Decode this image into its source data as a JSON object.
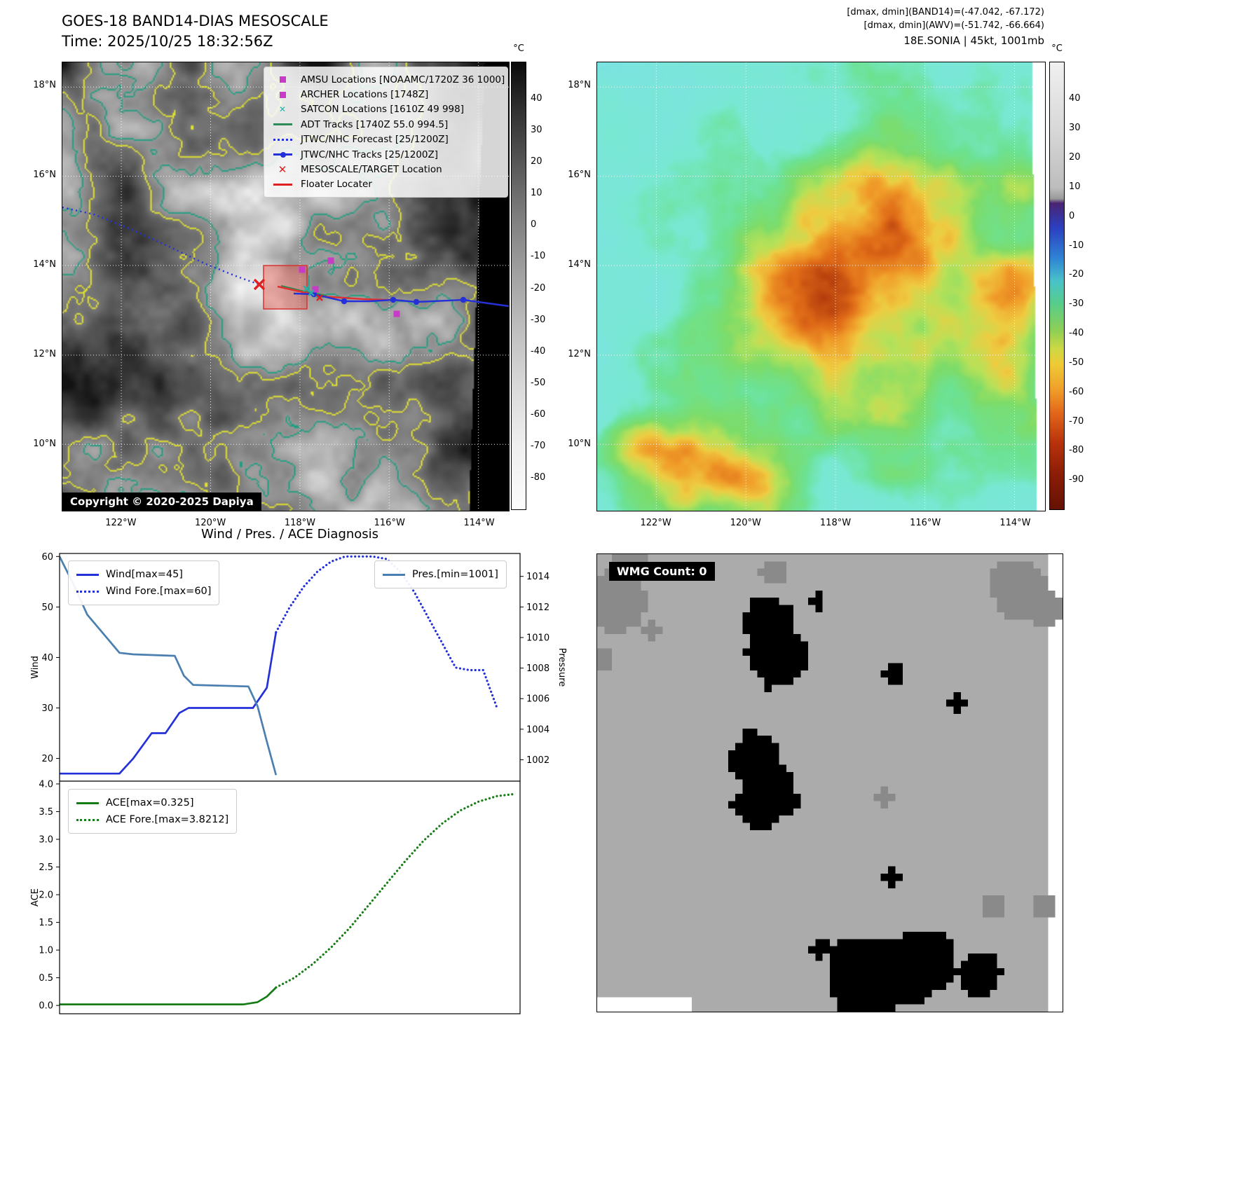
{
  "panel_tl": {
    "title": "GOES-18 BAND14-DIAS MESOSCALE",
    "subtitle": "Time: 2025/10/25 18:32:56Z",
    "copyright": "Copyright © 2020-2025 Dapiya",
    "colorbar": {
      "unit": "°C",
      "vmax": 52,
      "vmin": -90,
      "ticks": [
        40,
        30,
        20,
        10,
        0,
        -10,
        -20,
        -30,
        -40,
        -50,
        -60,
        -70,
        -80
      ]
    },
    "lat_ticks": [
      "18°N",
      "16°N",
      "14°N",
      "12°N",
      "10°N"
    ],
    "lon_ticks": [
      "122°W",
      "120°W",
      "118°W",
      "116°W",
      "114°W"
    ],
    "legend": [
      {
        "marker": "square",
        "color": "#c73bc7",
        "label": "AMSU Locations [NOAAMC/1720Z 36 1000]"
      },
      {
        "marker": "square",
        "color": "#c73bc7",
        "label": "ARCHER Locations [1748Z]"
      },
      {
        "marker": "x",
        "color": "#20b2aa",
        "label": "SATCON Locations [1610Z 49 998]"
      },
      {
        "marker": "line",
        "color": "#2e8b57",
        "label": "ADT Tracks [1740Z 55.0 994.5]"
      },
      {
        "marker": "dotted",
        "color": "#2431d8",
        "label": "JTWC/NHC Forecast [25/1200Z]"
      },
      {
        "marker": "line-dot",
        "color": "#2431d8",
        "label": "JTWC/NHC Tracks [25/1200Z]"
      },
      {
        "marker": "X",
        "color": "#e02020",
        "label": "MESOSCALE/TARGET Location"
      },
      {
        "marker": "line",
        "color": "#e02020",
        "label": "Floater Locater"
      }
    ]
  },
  "panel_tr": {
    "header_lines": [
      "[dmax, dmin](BAND14)=(-47.042, -67.172)",
      "[dmax, dmin](AWV)=(-51.742, -66.664)",
      "18E.SONIA | 45kt, 1001mb"
    ],
    "colorbar": {
      "unit": "°C",
      "vmax": 53,
      "vmin": -100,
      "ticks": [
        40,
        30,
        20,
        10,
        0,
        -10,
        -20,
        -30,
        -40,
        -50,
        -60,
        -70,
        -80,
        -90
      ]
    },
    "lat_ticks": [
      "18°N",
      "16°N",
      "14°N",
      "12°N",
      "10°N"
    ],
    "lon_ticks": [
      "122°W",
      "120°W",
      "118°W",
      "116°W",
      "114°W"
    ]
  },
  "panel_br": {
    "label": "WMG Count: 0"
  },
  "chart_data": [
    {
      "type": "line",
      "title": "Wind / Pres. / ACE Diagnosis",
      "ylabel_left": "Wind",
      "ylabel_right": "Pressure",
      "ylim_left": [
        15.5,
        60.6
      ],
      "ylim_right": [
        1000.6,
        1015.5
      ],
      "ytick_vals_left": [
        20,
        30,
        40,
        50,
        60
      ],
      "ytick_labels_left": [
        "20",
        "30",
        "40",
        "50",
        "60"
      ],
      "ytick_vals_right": [
        1002,
        1004,
        1006,
        1008,
        1010,
        1012,
        1014
      ],
      "ytick_labels_right": [
        "1002",
        "1004",
        "1006",
        "1008",
        "1010",
        "1012",
        "1014"
      ],
      "xlim": [
        0,
        100
      ],
      "series": [
        {
          "name": "Wind[max=45]",
          "axis": "left",
          "style": "solid",
          "color": "#2431d8",
          "x": [
            0,
            13,
            16,
            20,
            23,
            26,
            28,
            40,
            42,
            45,
            47
          ],
          "y": [
            17,
            17,
            20,
            25,
            25,
            29,
            30,
            30,
            30,
            34,
            45
          ]
        },
        {
          "name": "Wind Fore.[max=60]",
          "axis": "left",
          "style": "dotted",
          "color": "#2431d8",
          "x": [
            47,
            50,
            53,
            56,
            59,
            62,
            65,
            68,
            71,
            74,
            77,
            80,
            83,
            86,
            89,
            92,
            95
          ],
          "y": [
            45,
            50,
            54,
            57,
            59,
            60,
            60,
            60,
            59.5,
            57,
            53,
            48,
            43,
            38,
            37.5,
            37.5,
            30
          ]
        },
        {
          "name": "Pres.[min=1001]",
          "axis": "right",
          "style": "solid",
          "color": "#4a7fb0",
          "x": [
            0,
            3,
            6,
            13,
            16,
            25,
            27,
            29,
            41,
            43,
            45,
            47
          ],
          "y": [
            1015.3,
            1013.5,
            1011.5,
            1009.0,
            1008.9,
            1008.8,
            1007.5,
            1006.9,
            1006.8,
            1005.5,
            1003.2,
            1001.0
          ]
        }
      ]
    },
    {
      "type": "line",
      "ylabel_left": "ACE",
      "ylim_left": [
        -0.15,
        4.05
      ],
      "ytick_vals_left": [
        0,
        0.5,
        1,
        1.5,
        2,
        2.5,
        3,
        3.5,
        4
      ],
      "ytick_labels_left": [
        "0.0",
        "0.5",
        "1.0",
        "1.5",
        "2.0",
        "2.5",
        "3.0",
        "3.5",
        "4.0"
      ],
      "xlim": [
        0,
        100
      ],
      "series": [
        {
          "name": "ACE[max=0.325]",
          "axis": "left",
          "style": "solid",
          "color": "#167d16",
          "x": [
            0,
            40,
            43,
            45,
            47
          ],
          "y": [
            0.02,
            0.02,
            0.06,
            0.16,
            0.325
          ]
        },
        {
          "name": "ACE Fore.[max=3.8212]",
          "axis": "left",
          "style": "dotted",
          "color": "#167d16",
          "x": [
            47,
            51,
            55,
            59,
            63,
            67,
            71,
            75,
            79,
            83,
            87,
            91,
            95,
            99
          ],
          "y": [
            0.325,
            0.5,
            0.75,
            1.05,
            1.4,
            1.8,
            2.2,
            2.6,
            2.97,
            3.28,
            3.52,
            3.68,
            3.78,
            3.82
          ]
        }
      ]
    }
  ]
}
